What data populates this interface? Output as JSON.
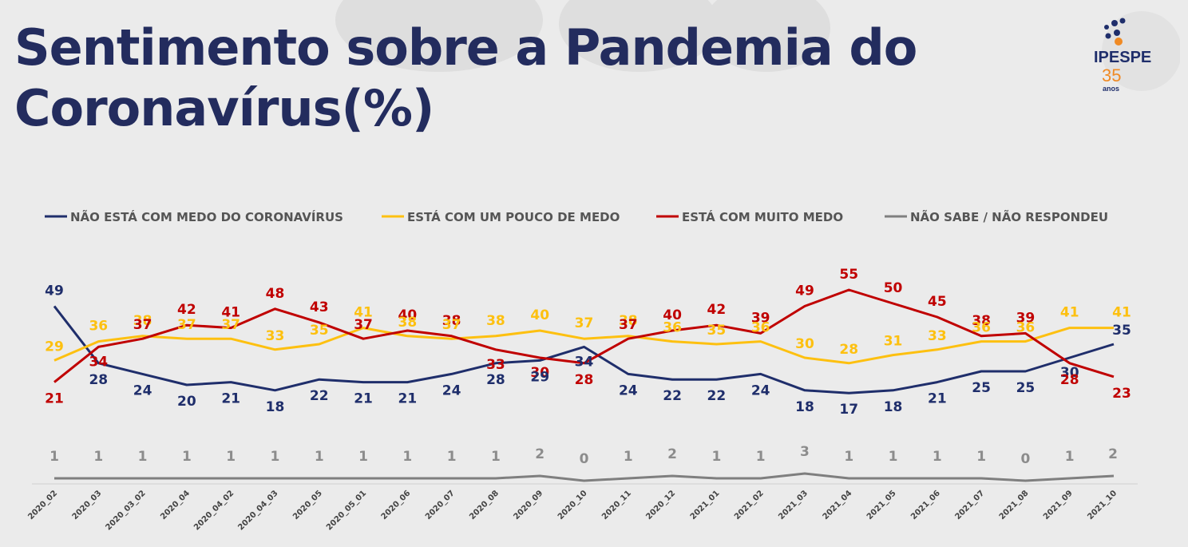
{
  "title_line1": "Sentimento sobre a Pandemia do",
  "title_line2": "Coronavírus(%)",
  "logo": {
    "name": "IPESPE",
    "years": "35",
    "suffix": "anos"
  },
  "colors": {
    "navy": "#1f2e6b",
    "yellow": "#fdc010",
    "red": "#c00000",
    "gray": "#7f7f7f",
    "title": "#232c5e"
  },
  "chart_data": {
    "type": "line",
    "categories": [
      "2020_02",
      "2020_03",
      "2020_03_02",
      "2020_04",
      "2020_04_02",
      "2020_04_03",
      "2020_05",
      "2020_05_01",
      "2020_06",
      "2020_07",
      "2020_08",
      "2020_09",
      "2020_10",
      "2020_11",
      "2020_12",
      "2021_01",
      "2021_02",
      "2021_03",
      "2021_04",
      "2021_05",
      "2021_06",
      "2021_07",
      "2021_08",
      "2021_09",
      "2021_10"
    ],
    "series": [
      {
        "name": "NÃO ESTÁ COM MEDO DO CORONAVÍRUS",
        "color": "#1f2e6b",
        "values": [
          49,
          28,
          24,
          20,
          21,
          18,
          22,
          21,
          21,
          24,
          28,
          29,
          34,
          24,
          22,
          22,
          24,
          18,
          17,
          18,
          21,
          25,
          25,
          30,
          35
        ]
      },
      {
        "name": "ESTÁ COM UM POUCO DE MEDO",
        "color": "#fdc010",
        "values": [
          29,
          36,
          38,
          37,
          37,
          33,
          35,
          41,
          38,
          37,
          38,
          40,
          37,
          38,
          36,
          35,
          36,
          30,
          28,
          31,
          33,
          36,
          36,
          41,
          41
        ]
      },
      {
        "name": "ESTÁ COM MUITO MEDO",
        "color": "#c00000",
        "values": [
          21,
          34,
          37,
          42,
          41,
          48,
          43,
          37,
          40,
          38,
          33,
          30,
          28,
          37,
          40,
          42,
          39,
          49,
          55,
          50,
          45,
          38,
          39,
          28,
          23
        ]
      },
      {
        "name": "NÃO SABE / NÃO RESPONDEU",
        "color": "#7f7f7f",
        "values": [
          1,
          1,
          1,
          1,
          1,
          1,
          1,
          1,
          1,
          1,
          1,
          2,
          0,
          1,
          2,
          1,
          1,
          3,
          1,
          1,
          1,
          1,
          0,
          1,
          2
        ]
      }
    ],
    "legend_position": "top",
    "grid": false
  }
}
